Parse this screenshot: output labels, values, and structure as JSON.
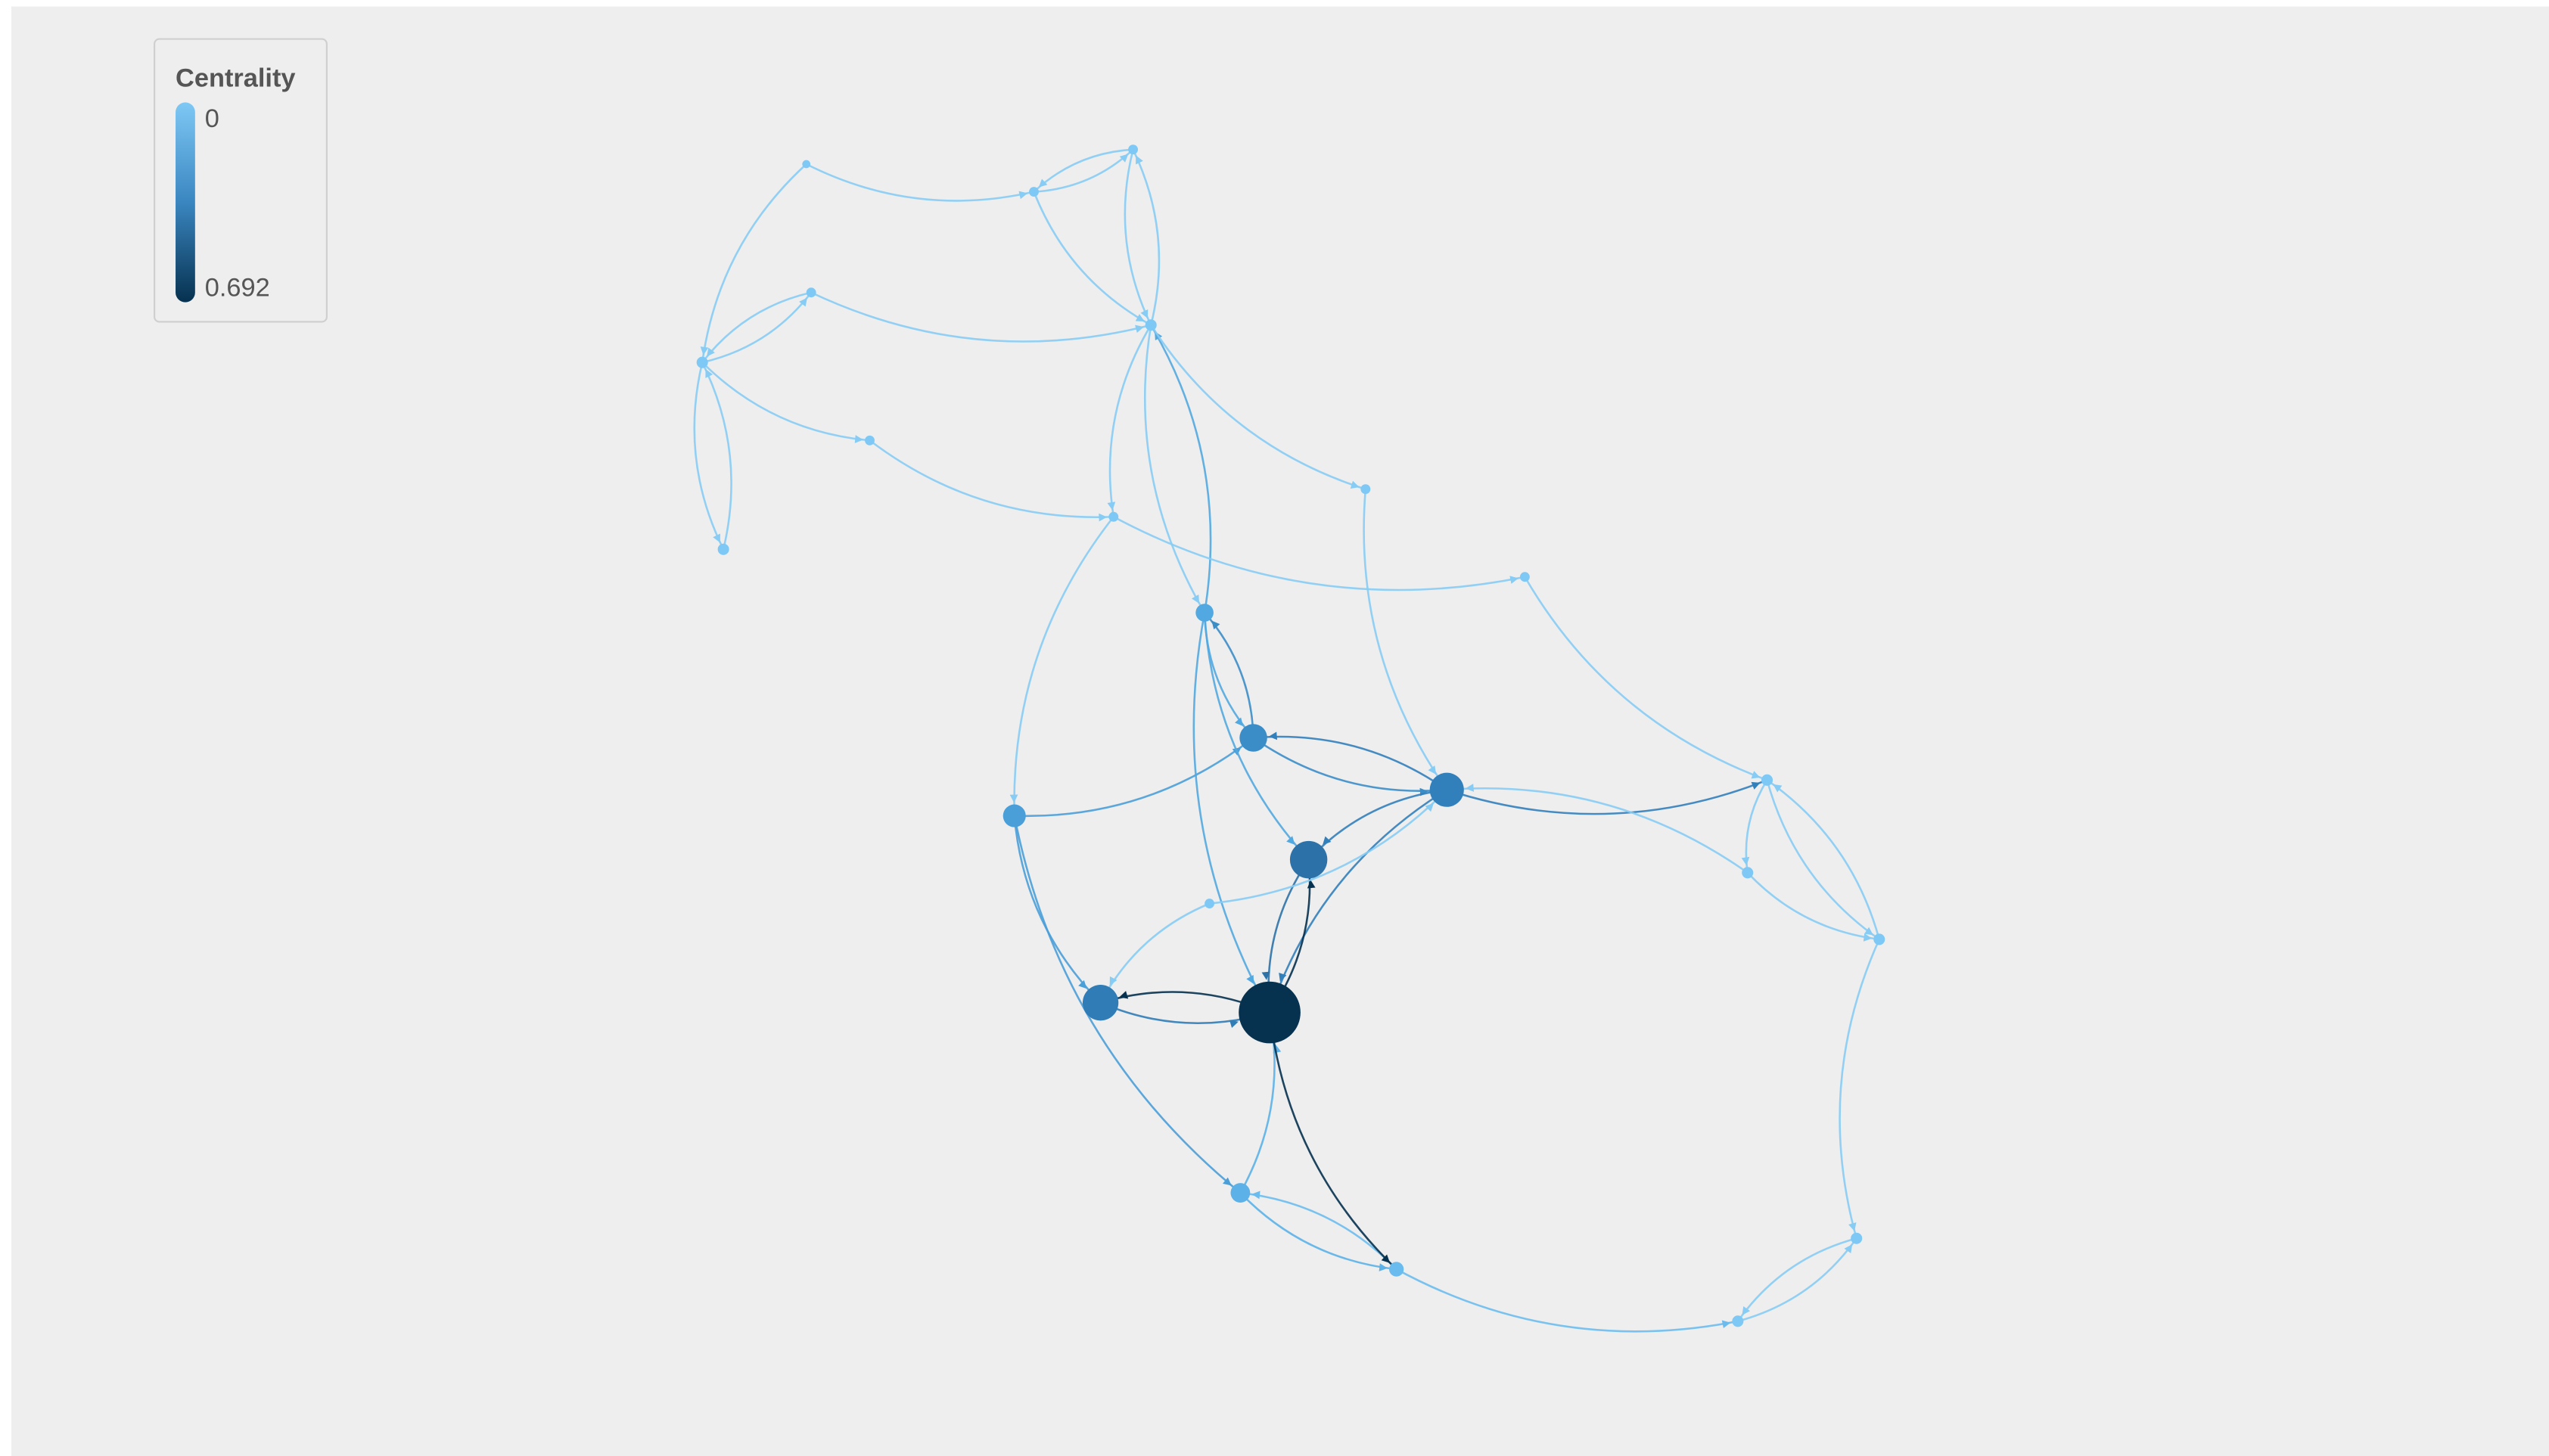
{
  "legend": {
    "title": "Centrality",
    "min_label": 0,
    "max_label": 0.692
  }
}
